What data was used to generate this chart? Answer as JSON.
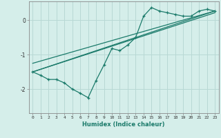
{
  "xlabel": "Humidex (Indice chaleur)",
  "background_color": "#d5eeea",
  "grid_color": "#b8d8d4",
  "line_color": "#1a7a6a",
  "xlim": [
    -0.5,
    23.5
  ],
  "ylim": [
    -2.7,
    0.55
  ],
  "yticks": [
    0,
    -1,
    -2
  ],
  "xticks": [
    0,
    1,
    2,
    3,
    4,
    5,
    6,
    7,
    8,
    9,
    10,
    11,
    12,
    13,
    14,
    15,
    16,
    17,
    18,
    19,
    20,
    21,
    22,
    23
  ],
  "series1_x": [
    0,
    1,
    2,
    3,
    4,
    5,
    6,
    7,
    8,
    9,
    10,
    11,
    12,
    13,
    14,
    15,
    16,
    17,
    18,
    19,
    20,
    21,
    22,
    23
  ],
  "series1_y": [
    -1.5,
    -1.6,
    -1.72,
    -1.72,
    -1.82,
    -2.0,
    -2.12,
    -2.25,
    -1.75,
    -1.3,
    -0.82,
    -0.88,
    -0.72,
    -0.5,
    0.12,
    0.37,
    0.27,
    0.22,
    0.17,
    0.12,
    0.12,
    0.27,
    0.32,
    0.27
  ],
  "line1_x": [
    0,
    23
  ],
  "line1_y": [
    -1.5,
    0.27
  ],
  "line2_x": [
    0,
    23
  ],
  "line2_y": [
    -1.5,
    0.22
  ],
  "line3_x": [
    0,
    23
  ],
  "line3_y": [
    -1.25,
    0.27
  ]
}
